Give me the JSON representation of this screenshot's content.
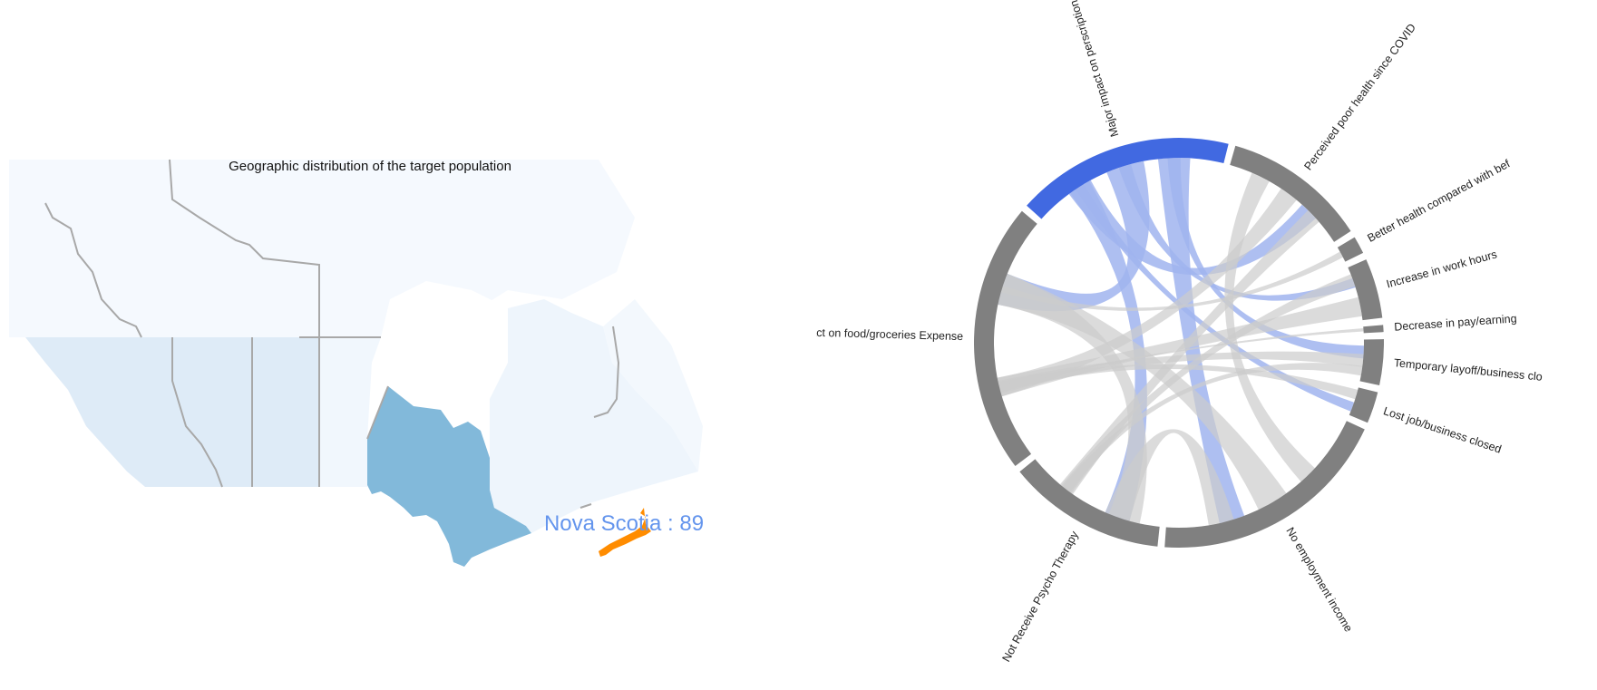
{
  "map": {
    "title": "Geographic distribution of the target population",
    "hover_label": "Nova Scotia : 89",
    "highlight_color": "#FF8C00",
    "label_color": "#6495ED",
    "regions": [
      {
        "name": "Yukon",
        "fill": "#F5F9FE"
      },
      {
        "name": "Northwest Territories",
        "fill": "#F5F9FE"
      },
      {
        "name": "Nunavut",
        "fill": "#F5F9FE"
      },
      {
        "name": "British Columbia",
        "fill": "#DEEBF7"
      },
      {
        "name": "Alberta",
        "fill": "#DEEBF7"
      },
      {
        "name": "Saskatchewan",
        "fill": "#DEEBF7"
      },
      {
        "name": "Manitoba",
        "fill": "#F1F7FD"
      },
      {
        "name": "Ontario",
        "fill": "#82B9DA"
      },
      {
        "name": "Quebec",
        "fill": "#EEF5FC"
      },
      {
        "name": "Newfoundland and Labrador",
        "fill": "#F3F8FD"
      },
      {
        "name": "Nova Scotia",
        "fill": "#FF8C00"
      }
    ]
  },
  "chart_data": {
    "type": "chord",
    "groups": [
      {
        "name": "Major impact on perscription medication expense",
        "color": "#4169E1",
        "selected": true
      },
      {
        "name": "Perceived poor health since COVID",
        "color": "#808080"
      },
      {
        "name": "Better health compared with bef",
        "color": "#808080"
      },
      {
        "name": "Increase in work hours",
        "color": "#808080"
      },
      {
        "name": "Decrease in pay/earning",
        "color": "#808080"
      },
      {
        "name": "Temporary layoff/business clo",
        "color": "#808080"
      },
      {
        "name": "Lost job/business closed",
        "color": "#808080"
      },
      {
        "name": "No employment income",
        "color": "#808080"
      },
      {
        "name": "Not Receive Psycho Therapy",
        "color": "#808080"
      },
      {
        "name": "Major impact on food/groceries Expense",
        "color": "#808080"
      }
    ],
    "colors": {
      "selected": "#4169E1",
      "selected_ribbon": "#A0B4EE",
      "other_ribbon": "#CCCCCC",
      "arc": "#808080"
    }
  }
}
